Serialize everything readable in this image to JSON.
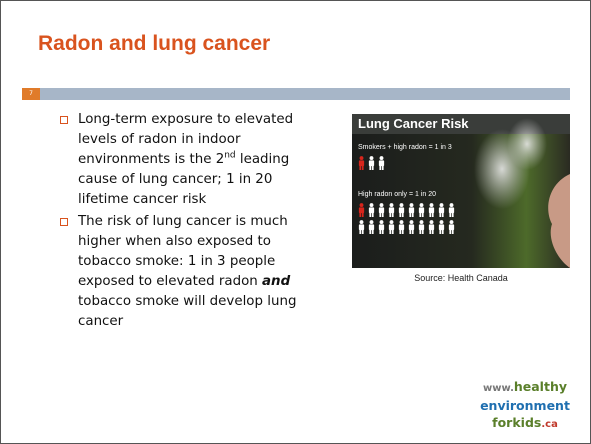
{
  "title": "Radon and lung cancer",
  "slide_number": "7",
  "bullets": [
    {
      "parts": [
        "Long-term exposure to elevated levels of radon in indoor environments is the 2",
        "nd",
        " leading cause of lung cancer; 1 in 20 lifetime cancer risk"
      ]
    },
    {
      "parts": [
        "The risk of lung cancer is much higher when also exposed to tobacco smoke: 1 in 3 people exposed to elevated radon ",
        "and",
        " tobacco smoke will develop lung cancer"
      ]
    }
  ],
  "image": {
    "title": "Lung Cancer Risk",
    "labels": [
      "Smokers + high radon = 1 in 3",
      "High radon only = 1 in 20"
    ]
  },
  "caption": "Source: Health Canada",
  "logo": [
    "www.",
    "healthy",
    "environment",
    "forkids",
    ".ca"
  ]
}
